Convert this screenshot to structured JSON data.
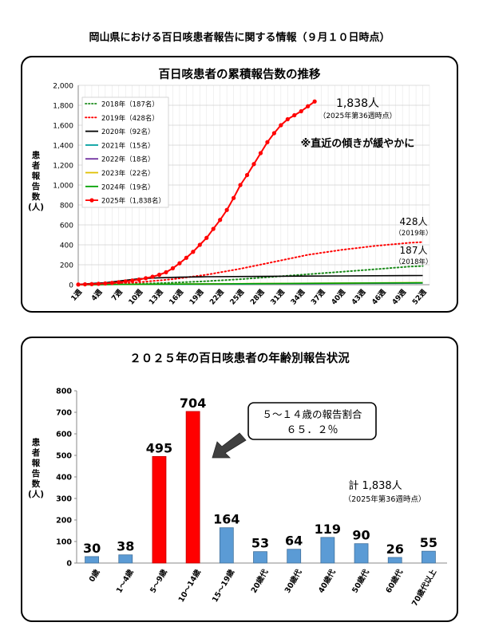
{
  "page": {
    "title": "岡山県における百日咳患者報告に関する情報（９月１０日時点）"
  },
  "charts": [
    {
      "title": "百日咳患者の累積報告数の推移",
      "ylabel": "患者報告数(人)",
      "ylabel_chars": [
        "患",
        "者",
        "報",
        "告",
        "数",
        "(人)"
      ],
      "legend": [
        {
          "label": "2018年（187名）",
          "color": "#1a8a1a",
          "style": "dotted"
        },
        {
          "label": "2019年（428名）",
          "color": "#ff0000",
          "style": "dotted"
        },
        {
          "label": "2020年（92名）",
          "color": "#000000",
          "style": "solid"
        },
        {
          "label": "2021年（15名）",
          "color": "#00a0a0",
          "style": "solid"
        },
        {
          "label": "2022年（18名）",
          "color": "#7030a0",
          "style": "solid"
        },
        {
          "label": "2023年（22名）",
          "color": "#e0c000",
          "style": "solid"
        },
        {
          "label": "2024年（19名）",
          "color": "#00a000",
          "style": "solid"
        },
        {
          "label": "2025年（1,838名）",
          "color": "#ff0000",
          "style": "marker"
        }
      ],
      "annotations": {
        "a2025_main": "1,838人",
        "a2025_sub": "（2025年第36週時点）",
        "a_note": "※直近の傾きが緩やかに",
        "a2019_main": "428人",
        "a2019_sub": "（2019年）",
        "a2018_main": "187人",
        "a2018_sub": "（2018年）"
      }
    },
    {
      "title": "２０２５年の百日咳患者の年齢別報告状況",
      "ylabel": "患者報告数(人)",
      "ylabel_chars": [
        "患",
        "者",
        "報",
        "告",
        "数",
        "(人)"
      ],
      "callout_line1": "５～１４歳の報告割合",
      "callout_line2": "６５．２％",
      "total_main": "計 1,838人",
      "total_sub": "（2025年第36週時点）"
    }
  ],
  "chart_data": [
    {
      "type": "line",
      "title": "百日咳患者の累積報告数の推移",
      "xlabel": "",
      "ylabel": "患者報告数(人)",
      "ylim": [
        0,
        2000
      ],
      "yticks": [
        0,
        200,
        400,
        600,
        800,
        1000,
        1200,
        1400,
        1600,
        1800,
        2000
      ],
      "ytick_labels": [
        "0",
        "200",
        "400",
        "600",
        "800",
        "1,000",
        "1,200",
        "1,400",
        "1,600",
        "1,800",
        "2,000"
      ],
      "xtick_labels": [
        "1週",
        "4週",
        "7週",
        "10週",
        "13週",
        "16週",
        "19週",
        "22週",
        "25週",
        "28週",
        "31週",
        "34週",
        "37週",
        "40週",
        "43週",
        "46週",
        "49週",
        "52週"
      ],
      "grid": true,
      "legend_position": "top-left",
      "series": [
        {
          "name": "2018年（187名）",
          "x": [
            1,
            5,
            10,
            15,
            20,
            25,
            30,
            35,
            40,
            45,
            50,
            52
          ],
          "values": [
            0,
            4,
            10,
            20,
            35,
            55,
            80,
            105,
            130,
            155,
            182,
            187
          ]
        },
        {
          "name": "2019年（428名）",
          "x": [
            1,
            5,
            10,
            15,
            20,
            25,
            30,
            35,
            40,
            45,
            50,
            52
          ],
          "values": [
            0,
            8,
            25,
            55,
            100,
            160,
            230,
            300,
            350,
            390,
            420,
            428
          ]
        },
        {
          "name": "2020年（92名）",
          "x": [
            1,
            5,
            8,
            10,
            13,
            16,
            20,
            30,
            40,
            52
          ],
          "values": [
            3,
            20,
            45,
            60,
            70,
            75,
            80,
            85,
            88,
            92
          ]
        },
        {
          "name": "2021年（15名）",
          "x": [
            1,
            10,
            20,
            30,
            40,
            52
          ],
          "values": [
            0,
            3,
            6,
            9,
            12,
            15
          ]
        },
        {
          "name": "2022年（18名）",
          "x": [
            1,
            10,
            20,
            30,
            40,
            52
          ],
          "values": [
            0,
            4,
            8,
            11,
            14,
            18
          ]
        },
        {
          "name": "2023年（22名）",
          "x": [
            1,
            10,
            20,
            30,
            40,
            52
          ],
          "values": [
            0,
            5,
            9,
            13,
            17,
            22
          ]
        },
        {
          "name": "2024年（19名）",
          "x": [
            1,
            10,
            20,
            30,
            40,
            52
          ],
          "values": [
            0,
            4,
            8,
            12,
            15,
            19
          ]
        },
        {
          "name": "2025年（1,838名）",
          "x": [
            1,
            2,
            3,
            4,
            5,
            6,
            7,
            8,
            9,
            10,
            11,
            12,
            13,
            14,
            15,
            16,
            17,
            18,
            19,
            20,
            21,
            22,
            23,
            24,
            25,
            26,
            27,
            28,
            29,
            30,
            31,
            32,
            33,
            34,
            35,
            36
          ],
          "values": [
            2,
            4,
            6,
            9,
            13,
            18,
            25,
            33,
            42,
            52,
            65,
            80,
            100,
            125,
            165,
            215,
            270,
            330,
            400,
            470,
            560,
            650,
            750,
            870,
            1000,
            1100,
            1210,
            1320,
            1430,
            1520,
            1600,
            1660,
            1700,
            1740,
            1790,
            1838
          ]
        }
      ]
    },
    {
      "type": "bar",
      "title": "２０２５年の百日咳患者の年齢別報告状況",
      "xlabel": "",
      "ylabel": "患者報告数(人)",
      "ylim": [
        0,
        800
      ],
      "yticks": [
        0,
        100,
        200,
        300,
        400,
        500,
        600,
        700,
        800
      ],
      "grid": false,
      "categories": [
        "0歳",
        "1～4歳",
        "5～9歳",
        "10～14歳",
        "15～19歳",
        "20歳代",
        "30歳代",
        "40歳代",
        "50歳代",
        "60歳代",
        "70歳代以上"
      ],
      "values": [
        30,
        38,
        495,
        704,
        164,
        53,
        64,
        119,
        90,
        26,
        55
      ],
      "colors": [
        "#5b9bd5",
        "#5b9bd5",
        "#ff0000",
        "#ff0000",
        "#5b9bd5",
        "#5b9bd5",
        "#5b9bd5",
        "#5b9bd5",
        "#5b9bd5",
        "#5b9bd5",
        "#5b9bd5"
      ]
    }
  ]
}
